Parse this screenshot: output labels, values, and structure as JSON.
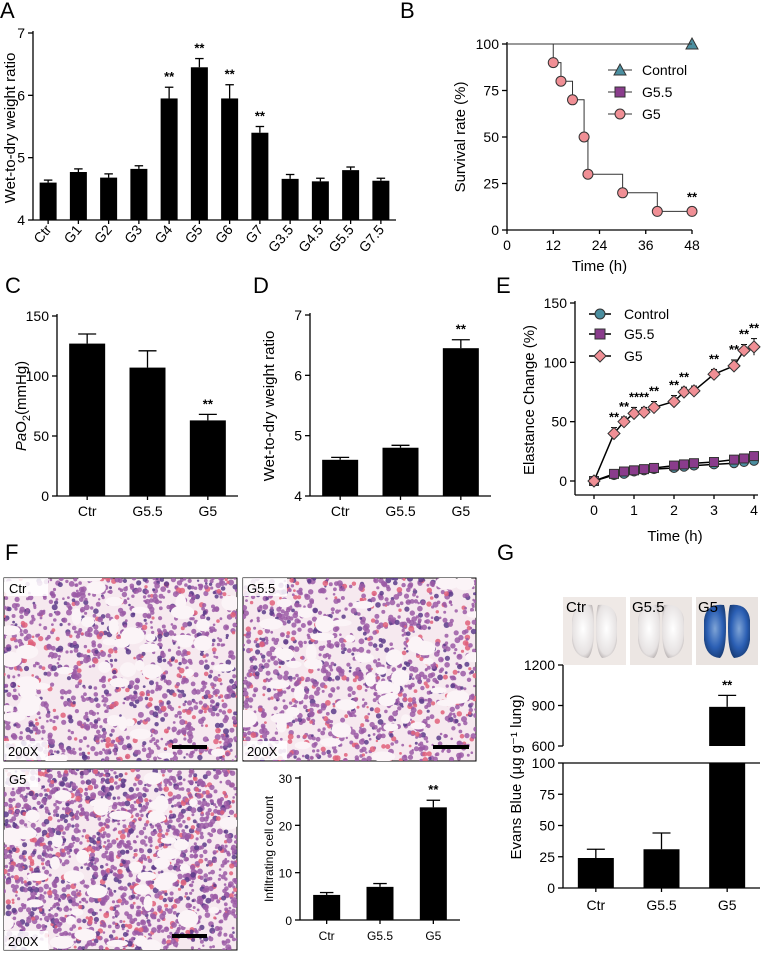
{
  "panels": {
    "A": "A",
    "B": "B",
    "C": "C",
    "D": "D",
    "E": "E",
    "F": "F",
    "G": "G"
  },
  "sig": "**",
  "chart_data": [
    {
      "id": "A",
      "type": "bar",
      "ylabel": "Wet-to-dry weight ratio",
      "categories": [
        "Ctr",
        "G1",
        "G2",
        "G3",
        "G4",
        "G5",
        "G6",
        "G7",
        "G3.5",
        "G4.5",
        "G5.5",
        "G7.5"
      ],
      "values": [
        4.6,
        4.77,
        4.68,
        4.82,
        5.95,
        6.45,
        5.95,
        5.4,
        4.66,
        4.62,
        4.8,
        4.63
      ],
      "errors": [
        0.04,
        0.05,
        0.06,
        0.05,
        0.18,
        0.14,
        0.22,
        0.1,
        0.07,
        0.05,
        0.05,
        0.04
      ],
      "significant": [
        false,
        false,
        false,
        false,
        true,
        true,
        true,
        true,
        false,
        false,
        false,
        false
      ],
      "ylim": [
        4,
        7
      ],
      "yticks": [
        4,
        5,
        6,
        7
      ]
    },
    {
      "id": "B",
      "type": "line",
      "ylabel": "Survival rate (%)",
      "xlabel": "Time (h)",
      "xlim": [
        0,
        48
      ],
      "ylim": [
        0,
        100
      ],
      "xticks": [
        0,
        12,
        24,
        36,
        48
      ],
      "yticks": [
        0,
        25,
        50,
        75,
        100
      ],
      "series": [
        {
          "name": "Control",
          "color": "#4b8fa0",
          "marker": "triangle",
          "steps": [
            [
              0,
              100
            ],
            [
              48,
              100
            ]
          ],
          "points": [
            [
              48,
              100
            ]
          ]
        },
        {
          "name": "G5.5",
          "color": "#8a3c8c",
          "marker": "square",
          "steps": [
            [
              0,
              100
            ],
            [
              48,
              100
            ]
          ],
          "points": []
        },
        {
          "name": "G5",
          "color": "#f08f95",
          "marker": "circle",
          "steps": [
            [
              0,
              100
            ],
            [
              12,
              100
            ],
            [
              12,
              90
            ],
            [
              14,
              90
            ],
            [
              14,
              80
            ],
            [
              17,
              80
            ],
            [
              17,
              70
            ],
            [
              20,
              70
            ],
            [
              20,
              50
            ],
            [
              21,
              50
            ],
            [
              21,
              30
            ],
            [
              30,
              30
            ],
            [
              30,
              20
            ],
            [
              39,
              20
            ],
            [
              39,
              10
            ],
            [
              48,
              10
            ]
          ],
          "points": [
            [
              12,
              90
            ],
            [
              14,
              80
            ],
            [
              17,
              70
            ],
            [
              20,
              50
            ],
            [
              21,
              30
            ],
            [
              30,
              20
            ],
            [
              39,
              10
            ],
            [
              48,
              10
            ]
          ]
        }
      ],
      "annotation": {
        "text": "**",
        "x": 48,
        "y": 10
      }
    },
    {
      "id": "C",
      "type": "bar",
      "ylabel_prefix": "Pa",
      "ylabel_main": "O",
      "ylabel_sub": "2",
      "ylabel_suffix": "(mmHg)",
      "categories": [
        "Ctr",
        "G5.5",
        "G5"
      ],
      "values": [
        127,
        107,
        63
      ],
      "errors": [
        8,
        14,
        5
      ],
      "significant": [
        false,
        false,
        true
      ],
      "ylim": [
        0,
        150
      ],
      "yticks": [
        0,
        50,
        100,
        150
      ]
    },
    {
      "id": "D",
      "type": "bar",
      "ylabel": "Wet-to-dry weight ratio",
      "categories": [
        "Ctr",
        "G5.5",
        "G5"
      ],
      "values": [
        4.6,
        4.8,
        6.45
      ],
      "errors": [
        0.04,
        0.04,
        0.14
      ],
      "significant": [
        false,
        false,
        true
      ],
      "ylim": [
        4,
        7
      ],
      "yticks": [
        4,
        5,
        6,
        7
      ]
    },
    {
      "id": "E",
      "type": "line",
      "ylabel": "Elastance Change (%)",
      "xlabel": "Time (h)",
      "xlim": [
        0,
        4
      ],
      "ylim": [
        0,
        150
      ],
      "xticks": [
        0,
        1,
        2,
        3,
        4
      ],
      "yticks": [
        0,
        50,
        100,
        150
      ],
      "x": [
        0,
        0.5,
        0.75,
        1,
        1.25,
        1.5,
        2,
        2.25,
        2.5,
        3,
        3.5,
        3.75,
        4
      ],
      "series": [
        {
          "name": "Control",
          "color": "#4b8fa0",
          "marker": "circle",
          "values": [
            0,
            5,
            6,
            8,
            9,
            10,
            11,
            12,
            13,
            14,
            15,
            16,
            17
          ]
        },
        {
          "name": "G5.5",
          "color": "#8a3c8c",
          "marker": "square",
          "values": [
            0,
            6,
            8,
            9,
            10,
            11,
            13,
            14,
            15,
            16,
            18,
            19,
            21
          ]
        },
        {
          "name": "G5",
          "color": "#f08f95",
          "marker": "diamond",
          "values": [
            0,
            40,
            50,
            57,
            58,
            62,
            67,
            75,
            76,
            90,
            97,
            110,
            113
          ]
        }
      ],
      "g5_errors": [
        0,
        5,
        4,
        5,
        4,
        5,
        5,
        4,
        4,
        4,
        5,
        5,
        7
      ],
      "stars_index": [
        1,
        2,
        3,
        4,
        5,
        6,
        7,
        9,
        10,
        11,
        12
      ]
    },
    {
      "id": "F_bar",
      "type": "bar",
      "ylabel": "Infiltrating cell count",
      "categories": [
        "Ctr",
        "G5.5",
        "G5"
      ],
      "values": [
        5.3,
        7.0,
        23.8
      ],
      "errors": [
        0.5,
        0.7,
        1.5
      ],
      "significant": [
        false,
        false,
        true
      ],
      "ylim": [
        0,
        30
      ],
      "yticks": [
        0,
        10,
        20,
        30
      ]
    },
    {
      "id": "G",
      "type": "bar",
      "ylabel": "Evans Blue (µg g⁻¹ lung)",
      "categories": [
        "Ctr",
        "G5.5",
        "G5"
      ],
      "values": [
        24,
        31,
        890
      ],
      "errors": [
        7,
        13,
        85
      ],
      "significant": [
        false,
        false,
        true
      ],
      "lower_ylim": [
        0,
        100
      ],
      "lower_yticks": [
        0,
        25,
        50,
        75,
        100
      ],
      "upper_ylim": [
        600,
        1200
      ],
      "upper_yticks": [
        600,
        900,
        1200
      ]
    }
  ],
  "histology": [
    {
      "label": "Ctr",
      "mag": "200X"
    },
    {
      "label": "G5.5",
      "mag": "200X"
    },
    {
      "label": "G5",
      "mag": "200X"
    }
  ],
  "lung_photos": [
    "Ctr",
    "G5.5",
    "G5"
  ],
  "colors": {
    "bar": "#000000",
    "tissue_bg": "#f6e9ef",
    "tissue_cell": "#9b5aa6",
    "tissue_dark": "#5c3b8a",
    "tissue_rbc": "#e0607a"
  }
}
